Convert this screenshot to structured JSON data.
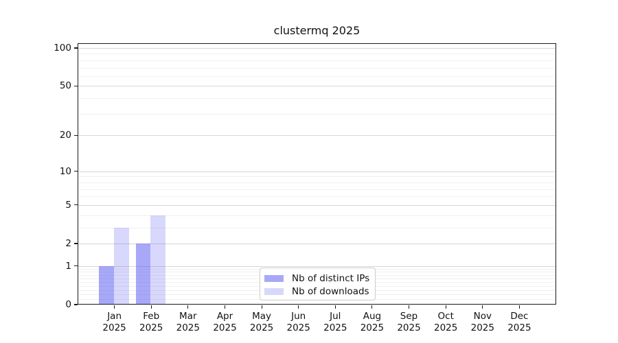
{
  "chart_data": {
    "type": "bar",
    "title": "clustermq 2025",
    "categories": [
      "Jan 2025",
      "Feb 2025",
      "Mar 2025",
      "Apr 2025",
      "May 2025",
      "Jun 2025",
      "Jul 2025",
      "Aug 2025",
      "Sep 2025",
      "Oct 2025",
      "Nov 2025",
      "Dec 2025"
    ],
    "series": [
      {
        "name": "Nb of distinct IPs",
        "values": [
          1,
          2,
          0,
          0,
          0,
          0,
          0,
          0,
          0,
          0,
          0,
          0
        ],
        "color": "#4646f0",
        "opacity": 0.47,
        "display_color": "#a8a8f7"
      },
      {
        "name": "Nb of downloads",
        "values": [
          3,
          4,
          0,
          0,
          0,
          0,
          0,
          0,
          0,
          0,
          0,
          0
        ],
        "color": "#4646f0",
        "opacity": 0.21,
        "display_color": "#d8d8fa"
      }
    ],
    "xlabel": "",
    "ylabel": "",
    "yscale": "log1p",
    "y_ticks": [
      0,
      1,
      2,
      5,
      10,
      20,
      50,
      100
    ],
    "y_minor_gridlines": [
      0.1,
      0.2,
      0.3,
      0.4,
      0.5,
      0.6,
      0.7,
      0.8,
      0.9,
      3,
      4,
      6,
      7,
      8,
      9,
      30,
      40,
      60,
      70,
      80,
      90
    ],
    "ylim": [
      0,
      109
    ],
    "grid": true,
    "legend_position": "lower center",
    "background_color": "#ffffff"
  }
}
